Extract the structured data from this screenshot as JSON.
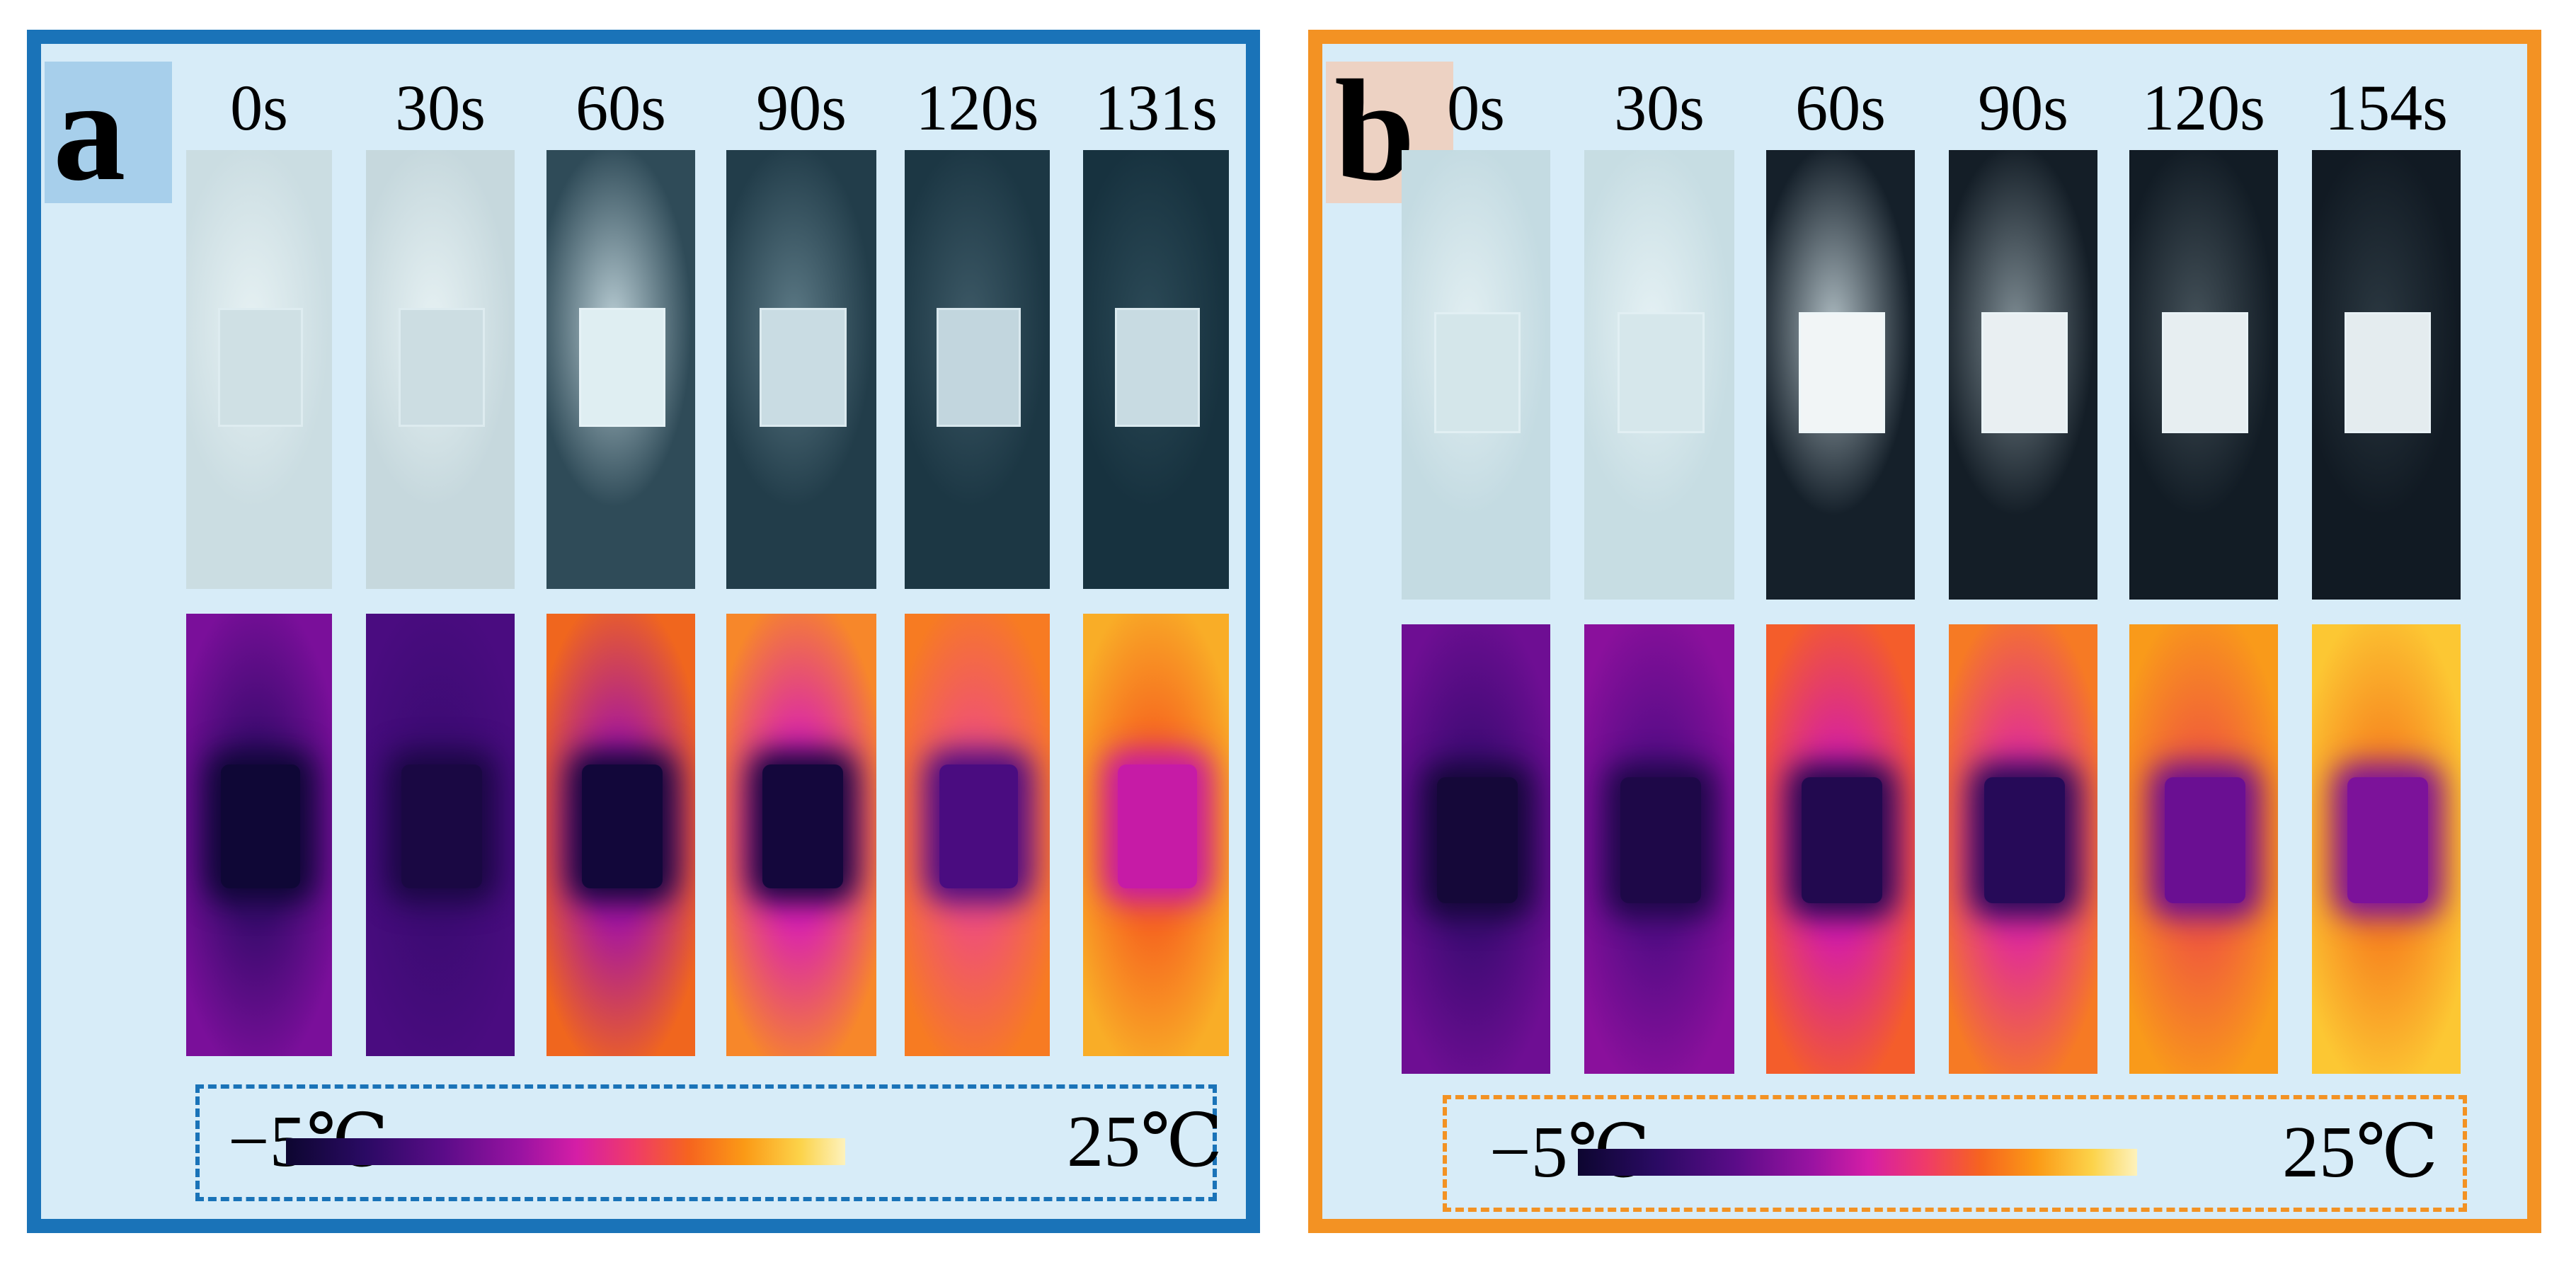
{
  "colormap": [
    "#0d0630",
    "#2a0a63",
    "#5a0c88",
    "#9a13a2",
    "#d51ea6",
    "#ef3a6a",
    "#f6641f",
    "#fb9a16",
    "#fcd34a",
    "#fdf2bd"
  ],
  "panels": [
    {
      "letter": "a",
      "frame_color": "#1a73b8",
      "times": [
        "0s",
        "30s",
        "60s",
        "90s",
        "120s",
        "131s"
      ],
      "legend": {
        "min": "−5℃",
        "max": "25℃"
      },
      "photo_frames": [
        {
          "background": "#cbdde2",
          "sample_fill": "#cfe0e4",
          "frost": "#e6f1f3"
        },
        {
          "background": "#c6d8dd",
          "sample_fill": "#ccdde2",
          "frost": "#e6f1f3"
        },
        {
          "background": "#2f4b58",
          "sample_fill": "#dfeef2",
          "frost": "#b9cdd4"
        },
        {
          "background": "#223d4a",
          "sample_fill": "#c9dce3",
          "frost": "#5d7a86"
        },
        {
          "background": "#1c3744",
          "sample_fill": "#c2d6de",
          "frost": "#3d5966"
        },
        {
          "background": "#17323f",
          "sample_fill": "#c8dbe2",
          "frost": "#2c4a57"
        }
      ],
      "thermal_frames": [
        {
          "edge": "#7a0f9a",
          "middle": "#3a0b6e",
          "sample": "#0f0736"
        },
        {
          "edge": "#4a0c80",
          "middle": "#3c0b73",
          "sample": "#1a0843"
        },
        {
          "edge": "#f0661e",
          "middle": "#a516a0",
          "sample": "#12073a"
        },
        {
          "edge": "#f7872a",
          "middle": "#d922b0",
          "sample": "#14073c"
        },
        {
          "edge": "#f77b22",
          "middle": "#ef4f7a",
          "sample": "#4a0c80"
        },
        {
          "edge": "#f9ad27",
          "middle": "#f6641f",
          "sample": "#c61ba6"
        }
      ]
    },
    {
      "letter": "b",
      "frame_color": "#f39223",
      "times": [
        "0s",
        "30s",
        "60s",
        "90s",
        "120s",
        "154s"
      ],
      "legend": {
        "min": "−5℃",
        "max": "25℃"
      },
      "photo_frames": [
        {
          "background": "#c4dbe2",
          "sample_fill": "#d4e6ea",
          "frost": "#e2eff2"
        },
        {
          "background": "#c7dde3",
          "sample_fill": "#d6e7eb",
          "frost": "#e5f1f4"
        },
        {
          "background": "#15202a",
          "sample_fill": "#f1f5f6",
          "frost": "#aebcc2"
        },
        {
          "background": "#141e27",
          "sample_fill": "#e9eff2",
          "frost": "#7f8d94"
        },
        {
          "background": "#121c25",
          "sample_fill": "#e7eef1",
          "frost": "#45525a"
        },
        {
          "background": "#111a23",
          "sample_fill": "#e4ecef",
          "frost": "#2b3841"
        }
      ],
      "thermal_frames": [
        {
          "edge": "#6e0e93",
          "middle": "#3e0b74",
          "sample": "#150839"
        },
        {
          "edge": "#8a109c",
          "middle": "#550c86",
          "sample": "#1e0848"
        },
        {
          "edge": "#f45d2b",
          "middle": "#d51ea6",
          "sample": "#22094f"
        },
        {
          "edge": "#f67a24",
          "middle": "#e02b9a",
          "sample": "#260a58"
        },
        {
          "edge": "#f99a1a",
          "middle": "#f05a3c",
          "sample": "#6a0f92"
        },
        {
          "edge": "#fcc733",
          "middle": "#f7841f",
          "sample": "#7c129a"
        }
      ]
    }
  ]
}
